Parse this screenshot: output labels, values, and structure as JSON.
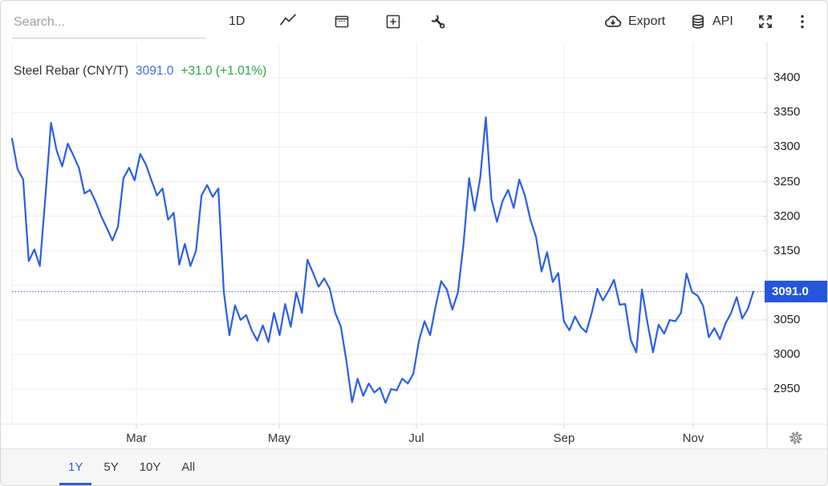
{
  "toolbar": {
    "search": {
      "placeholder": "Search..."
    },
    "interval_button": "1D",
    "export_label": "Export",
    "api_label": "API",
    "icons": [
      "line-chart-icon",
      "calendar-icon",
      "add-compare-icon",
      "wrench-icon",
      "cloud-download-icon",
      "database-icon",
      "fullscreen-icon",
      "kebab-menu-icon",
      "gear-icon",
      "search-input"
    ]
  },
  "header": {
    "title": "Steel Rebar (CNY/T)",
    "price": "3091.0",
    "change": "+31.0 (+1.01%)"
  },
  "price_axis": {
    "label": "3091.0"
  },
  "range_tabs": [
    {
      "label": "1Y",
      "active": true
    },
    {
      "label": "5Y",
      "active": false
    },
    {
      "label": "10Y",
      "active": false
    },
    {
      "label": "All",
      "active": false
    }
  ],
  "colors": {
    "accent": "#2a5ce2",
    "line": "#2c5de5",
    "price_box": "#2456dd",
    "positive": "#28a745",
    "grid": "#ededed",
    "axis": "#d9d9d9",
    "dotted_line": "#3f62d9"
  },
  "chart_data": {
    "type": "line",
    "title": "Steel Rebar (CNY/T)",
    "ylabel": "CNY/T",
    "time_range": "1Y",
    "last_price": 3091.0,
    "change": 31.0,
    "change_percent": 1.01,
    "x_tick_labels": [
      "Mar",
      "May",
      "Jul",
      "Sep",
      "Nov"
    ],
    "y_ticks": [
      3400,
      3350,
      3300,
      3250,
      3200,
      3150,
      3100,
      3050,
      3000,
      2950
    ],
    "ylim": [
      2899,
      3424
    ],
    "grid": true,
    "legend": false,
    "series": [
      {
        "name": "Steel Rebar (CNY/T)",
        "values": [
          3312,
          3268,
          3253,
          3135,
          3152,
          3128,
          3230,
          3335,
          3295,
          3272,
          3305,
          3288,
          3270,
          3233,
          3238,
          3221,
          3200,
          3183,
          3165,
          3185,
          3255,
          3270,
          3252,
          3290,
          3275,
          3252,
          3230,
          3240,
          3195,
          3205,
          3130,
          3160,
          3128,
          3150,
          3230,
          3245,
          3228,
          3240,
          3090,
          3028,
          3071,
          3050,
          3057,
          3035,
          3020,
          3042,
          3018,
          3060,
          3028,
          3073,
          3040,
          3090,
          3060,
          3137,
          3118,
          3098,
          3110,
          3095,
          3060,
          3040,
          2990,
          2931,
          2965,
          2940,
          2958,
          2945,
          2952,
          2930,
          2950,
          2948,
          2965,
          2958,
          2972,
          3020,
          3048,
          3028,
          3070,
          3106,
          3094,
          3065,
          3090,
          3160,
          3255,
          3208,
          3256,
          3343,
          3225,
          3192,
          3222,
          3238,
          3212,
          3253,
          3230,
          3195,
          3170,
          3120,
          3148,
          3105,
          3118,
          3048,
          3035,
          3055,
          3040,
          3032,
          3060,
          3095,
          3078,
          3092,
          3108,
          3072,
          3073,
          3021,
          3003,
          3094,
          3046,
          3003,
          3043,
          3030,
          3050,
          3048,
          3060,
          3117,
          3090,
          3085,
          3070,
          3025,
          3038,
          3022,
          3045,
          3060,
          3083,
          3052,
          3066,
          3091
        ]
      }
    ]
  }
}
